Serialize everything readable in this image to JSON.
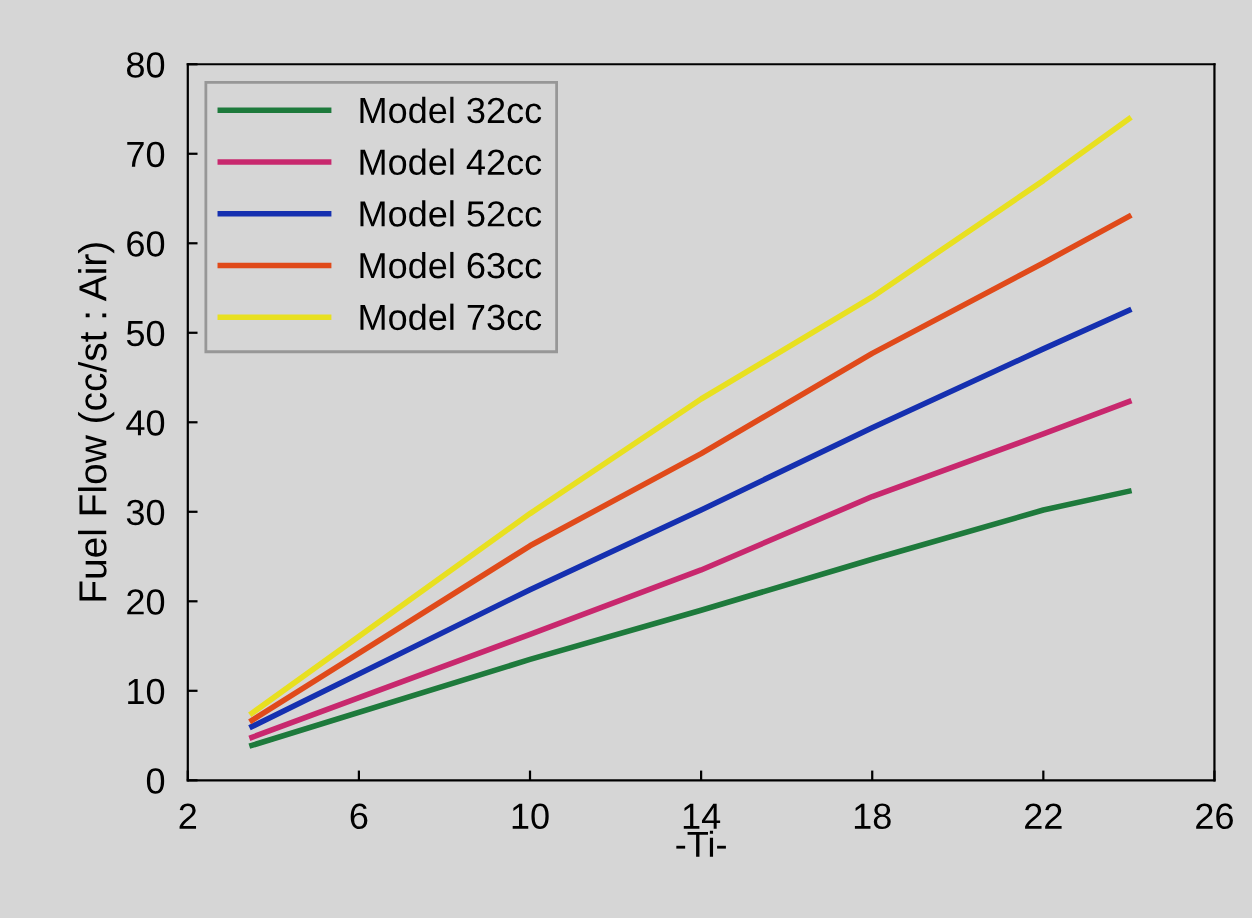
{
  "chart_data": {
    "type": "line",
    "xlabel": "-Ti-",
    "ylabel": "Fuel Flow (cc/st : Air)",
    "xlim": [
      2,
      26
    ],
    "xticks": [
      2,
      6,
      10,
      14,
      18,
      22,
      26
    ],
    "ylim": [
      0,
      80
    ],
    "yticks": [
      0,
      10,
      20,
      30,
      40,
      50,
      60,
      70,
      80
    ],
    "grid": false,
    "legend": "top left",
    "marker": "none",
    "line_style": "solid",
    "series": [
      {
        "name": "Model 32cc",
        "color": "#1e7a3c",
        "x": [
          3.5,
          10,
          14,
          18,
          22,
          24
        ],
        "values": [
          3.9,
          13.5,
          19,
          24.7,
          30.2,
          32.3
        ]
      },
      {
        "name": "Model 42cc",
        "color": "#c8286e",
        "x": [
          3.5,
          10,
          14,
          18,
          22,
          24
        ],
        "values": [
          4.8,
          16.3,
          23.5,
          31.7,
          38.7,
          42.3
        ]
      },
      {
        "name": "Model 52cc",
        "color": "#1530b0",
        "x": [
          3.5,
          10,
          14,
          18,
          22,
          24
        ],
        "values": [
          6.0,
          21.3,
          30.2,
          39.4,
          48.2,
          52.5
        ]
      },
      {
        "name": "Model 63cc",
        "color": "#e04a1a",
        "x": [
          3.5,
          10,
          14,
          18,
          22,
          24
        ],
        "values": [
          6.7,
          26.2,
          36.5,
          47.7,
          57.8,
          63.0
        ]
      },
      {
        "name": "Model 73cc",
        "color": "#e8e020",
        "x": [
          3.5,
          10,
          14,
          18,
          22,
          24
        ],
        "values": [
          7.5,
          29.8,
          42.6,
          54,
          67,
          73.9
        ]
      }
    ]
  }
}
